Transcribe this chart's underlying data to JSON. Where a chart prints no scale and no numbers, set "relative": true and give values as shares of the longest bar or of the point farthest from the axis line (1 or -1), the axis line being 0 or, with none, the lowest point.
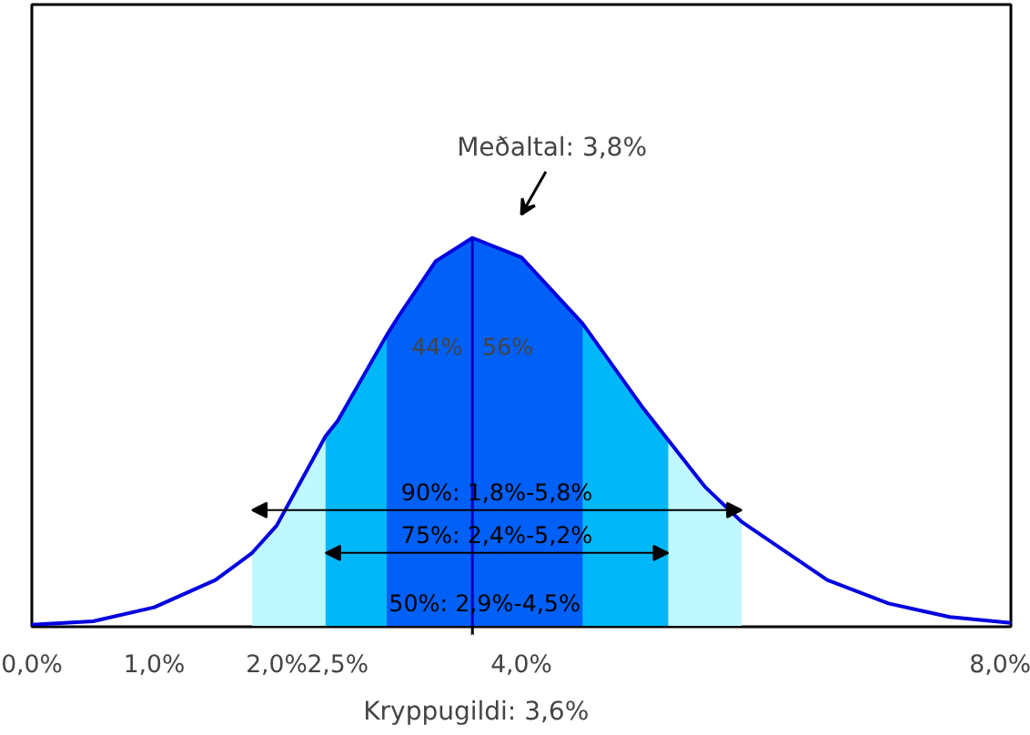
{
  "chart_data": {
    "type": "line",
    "relative": true,
    "x": [
      0,
      0.5,
      1.0,
      1.5,
      1.8,
      2.0,
      2.4,
      2.5,
      2.9,
      3.0,
      3.3,
      3.6,
      4.0,
      4.5,
      5.0,
      5.2,
      5.5,
      5.8,
      6.5,
      7.0,
      7.5,
      8.0
    ],
    "series": [
      {
        "type": "area",
        "color": "#c0f8ff",
        "x": [
          1.8,
          2.0,
          2.4,
          2.5,
          2.9,
          3.0,
          3.3,
          3.6,
          4.0,
          4.5,
          5.0,
          5.2,
          5.5,
          5.8
        ],
        "values": [
          0.19,
          0.26,
          0.49,
          null,
          null,
          null,
          null,
          null,
          null,
          null,
          null,
          0.48,
          0.36,
          0.27
        ]
      },
      {
        "type": "area",
        "color": "#00b8f8",
        "x": [
          2.4,
          2.5,
          2.9,
          3.0,
          3.3,
          3.6,
          4.0,
          4.5,
          5.0,
          5.2
        ],
        "values": [
          0.49,
          0.53,
          0.75,
          null,
          null,
          null,
          null,
          0.78,
          0.56,
          0.48
        ]
      },
      {
        "type": "area",
        "color": "#0060f8",
        "x": [
          2.9,
          3.0,
          3.3,
          3.6,
          4.0,
          4.5
        ],
        "values": [
          0.75,
          0.8,
          0.94,
          1.0,
          0.95,
          0.78
        ]
      },
      {
        "color": "#0000e0",
        "values": [
          0.005,
          0.014,
          0.05,
          0.12,
          0.19,
          0.26,
          0.49,
          0.53,
          0.75,
          0.8,
          0.94,
          1.0,
          0.95,
          0.78,
          0.56,
          0.48,
          0.36,
          0.27,
          0.12,
          0.06,
          0.025,
          0.01
        ]
      }
    ],
    "xlim": [
      0,
      8
    ],
    "xticks": [
      {
        "value": 0,
        "label": "0,0%"
      },
      {
        "value": 1,
        "label": "1,0%"
      },
      {
        "value": 2,
        "label": "2,0%"
      },
      {
        "value": 2.5,
        "label": "2,5%"
      },
      {
        "value": 4,
        "label": "4,0%"
      },
      {
        "value": 8,
        "label": "8,0%"
      }
    ],
    "tick_labels": "x",
    "grid": false,
    "marker": "none",
    "line_style": "solid",
    "ref_lines": [
      {
        "axis": "x",
        "value": 3.6,
        "color": "#0000c0"
      }
    ],
    "annotations": [
      {
        "text": "Meðaltal: 3,8%",
        "x": 3.8,
        "y": 1.0
      },
      {
        "text": "Kryppugildi: 3,6%",
        "x": 3.6,
        "y": 0
      },
      "44%",
      "56%",
      "90%: 1,8%-5,8%",
      "75%: 2,4%-5,2%",
      "50%: 2,9%-4,5%"
    ]
  }
}
